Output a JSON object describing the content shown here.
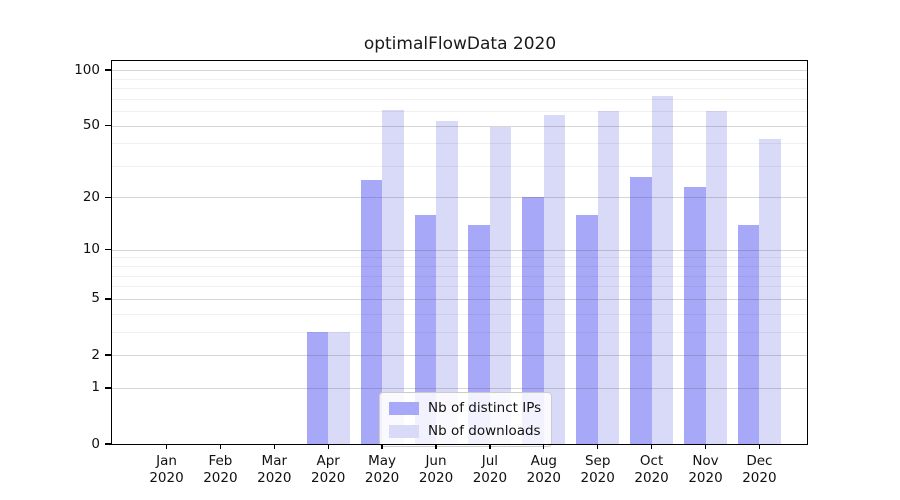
{
  "title": "optimalFlowData 2020",
  "legend": {
    "items": [
      {
        "label": "Nb of distinct IPs"
      },
      {
        "label": "Nb of downloads"
      }
    ]
  },
  "chart_data": {
    "type": "bar",
    "title": "optimalFlowData 2020",
    "categories": [
      "Jan 2020",
      "Feb 2020",
      "Mar 2020",
      "Apr 2020",
      "May 2020",
      "Jun 2020",
      "Jul 2020",
      "Aug 2020",
      "Sep 2020",
      "Oct 2020",
      "Nov 2020",
      "Dec 2020"
    ],
    "series": [
      {
        "name": "Nb of distinct IPs",
        "color": "#a8a8f8",
        "values": [
          0,
          0,
          0,
          3,
          25,
          16,
          14,
          20,
          16,
          26,
          23,
          14
        ]
      },
      {
        "name": "Nb of downloads",
        "color": "#d9d9f8",
        "values": [
          0,
          0,
          0,
          3,
          61,
          53,
          49,
          57,
          60,
          72,
          60,
          42
        ]
      }
    ],
    "xlabel": "",
    "ylabel": "",
    "yscale": "log1p",
    "y_ticks": [
      0,
      1,
      2,
      5,
      10,
      20,
      50,
      100
    ],
    "y_minor_ticks": [
      3,
      4,
      6,
      7,
      8,
      9,
      30,
      40,
      60,
      70,
      80,
      90
    ],
    "ylim": [
      0,
      113
    ],
    "grid": "on",
    "legend_position": "lower center"
  }
}
